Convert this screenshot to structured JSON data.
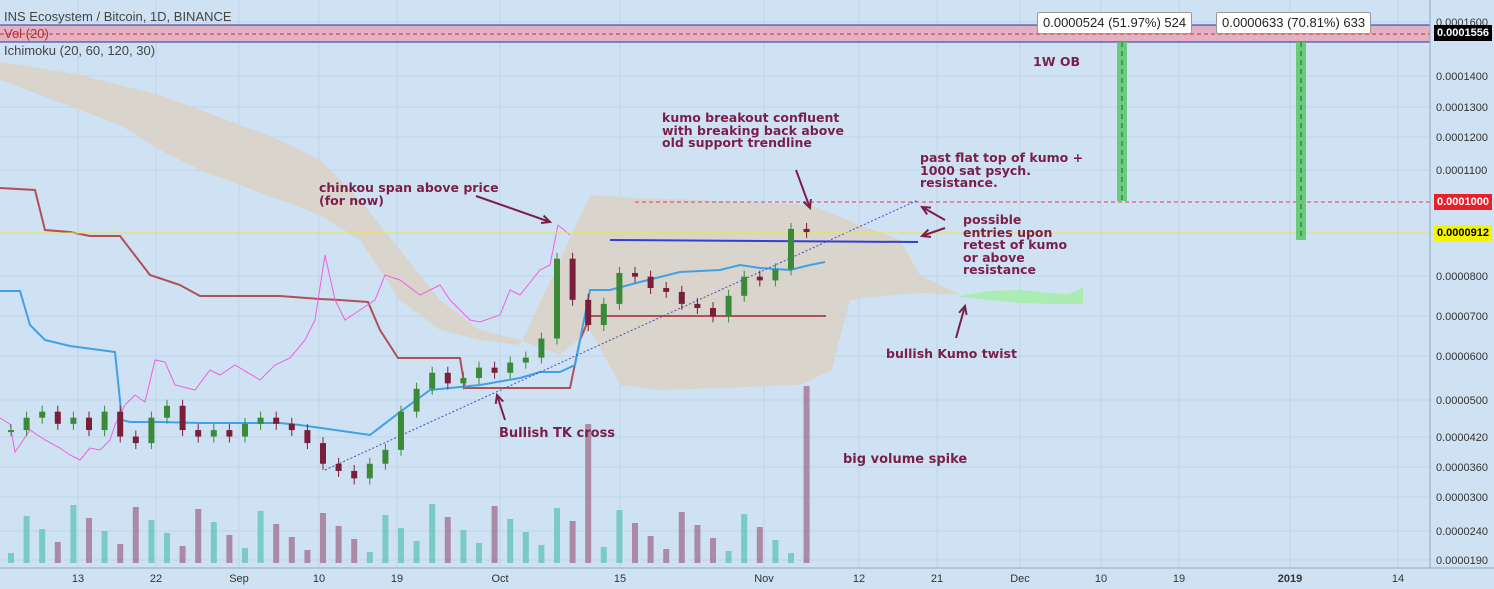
{
  "legend": {
    "title": "INS Ecosystem / Bitcoin, 1D, BINANCE",
    "volume": "Vol (20)",
    "ichimoku": "Ichimoku (20, 60, 120, 30)"
  },
  "annotations": {
    "chinkou": "chinkou span above price\n(for now)",
    "kumo_breakout": "kumo breakout confluent\nwith breaking back above\nold support trendline",
    "flat_top": "past flat top of kumo +\n1000 sat psych.\nresistance.",
    "entries": "possible\nentries upon\nretest of kumo\nor above\nresistance",
    "ob": "1W OB",
    "kumo_twist": "bullish Kumo twist",
    "tk_cross": "Bullish TK cross",
    "volume_spike": "big volume spike"
  },
  "measure_labels": [
    "0.0000524 (51.97%) 524",
    "0.0000633 (70.81%) 633"
  ],
  "price_tags": {
    "ob_top": "0.0001556",
    "resistance": "0.0001000",
    "current": "0.0000912"
  },
  "colors": {
    "up": "#3a8a3a",
    "down": "#7a1f3a",
    "kumo": "#d9d4c8",
    "kijun": "#b05058",
    "tenkan": "#40a0e8",
    "chikou": "#f060e0",
    "ob_zone": "#e8a8b8",
    "note": "#7a1f4a"
  },
  "chart_data": {
    "type": "candlestick",
    "x_ticks": [
      "13",
      "22",
      "Sep",
      "10",
      "19",
      "Oct",
      "15",
      "Nov",
      "12",
      "21",
      "Dec",
      "10",
      "19",
      "2019",
      "14"
    ],
    "y_ticks": [
      "0.0001600",
      "0.0001400",
      "0.0001300",
      "0.0001200",
      "0.0001100",
      "0.0000800",
      "0.0000700",
      "0.0000600",
      "0.0000500",
      "0.0000420",
      "0.0000360",
      "0.0000300",
      "0.0000240",
      "0.0000190"
    ],
    "ob_zone": [
      0.0001556,
      0.000162
    ],
    "resistance_level": 0.0001,
    "current_price": 9.12e-05,
    "close_series": [
      4.5e-05,
      4.7e-05,
      4.8e-05,
      4.6e-05,
      4.7e-05,
      4.5e-05,
      4.8e-05,
      4.4e-05,
      4.3e-05,
      4.7e-05,
      4.9e-05,
      4.5e-05,
      4.4e-05,
      4.5e-05,
      4.4e-05,
      4.6e-05,
      4.7e-05,
      4.6e-05,
      4.5e-05,
      4.3e-05,
      4e-05,
      3.9e-05,
      3.8e-05,
      4e-05,
      4.2e-05,
      4.8e-05,
      5.2e-05,
      5.5e-05,
      5.3e-05,
      5.4e-05,
      5.6e-05,
      5.5e-05,
      5.7e-05,
      5.8e-05,
      6.2e-05,
      8.2e-05,
      7.1e-05,
      6.5e-05,
      7e-05,
      7.8e-05,
      7.7e-05,
      7.4e-05,
      7.3e-05,
      7e-05,
      6.9e-05,
      6.7e-05,
      7.2e-05,
      7.7e-05,
      7.6e-05,
      7.9e-05,
      9.1e-05,
      9e-05
    ]
  }
}
